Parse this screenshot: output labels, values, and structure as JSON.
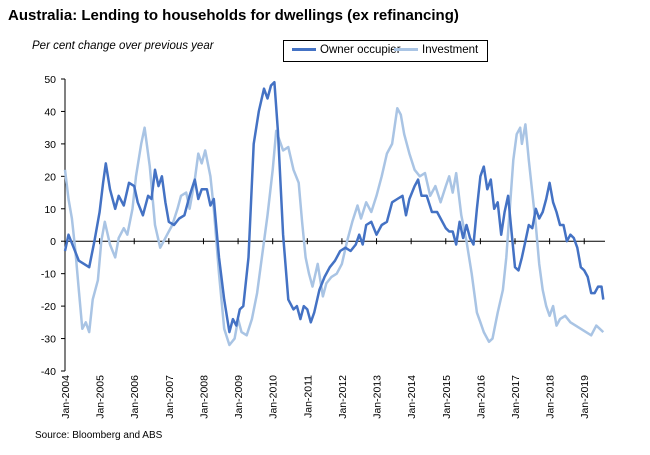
{
  "title": "Australia: Lending to households for dwellings (ex refinancing)",
  "source": "Source: Bloomberg and ABS",
  "chart_data": {
    "type": "line",
    "title": "Australia: Lending to households for dwellings (ex refinancing)",
    "subtitle": "Per cent change over previous year",
    "ylim": [
      -40,
      50
    ],
    "yticks": [
      -40,
      -30,
      -20,
      -10,
      0,
      10,
      20,
      30,
      40,
      50
    ],
    "xlim": [
      2004.0,
      2019.6
    ],
    "xticks": [
      "Jan-2004",
      "Jan-2005",
      "Jan-2006",
      "Jan-2007",
      "Jan-2008",
      "Jan-2009",
      "Jan-2010",
      "Jan-2011",
      "Jan-2012",
      "Jan-2013",
      "Jan-2014",
      "Jan-2015",
      "Jan-2016",
      "Jan-2017",
      "Jan-2018",
      "Jan-2019"
    ],
    "legend": "top-center",
    "grid": false,
    "series": [
      {
        "name": "Owner occupier",
        "color": "#4472c4",
        "points": [
          [
            2004.0,
            -3
          ],
          [
            2004.1,
            2
          ],
          [
            2004.25,
            -2
          ],
          [
            2004.4,
            -6
          ],
          [
            2004.55,
            -7
          ],
          [
            2004.7,
            -8
          ],
          [
            2004.85,
            0
          ],
          [
            2005.0,
            9
          ],
          [
            2005.1,
            18
          ],
          [
            2005.18,
            24
          ],
          [
            2005.3,
            16
          ],
          [
            2005.45,
            10
          ],
          [
            2005.55,
            14
          ],
          [
            2005.7,
            11
          ],
          [
            2005.85,
            18
          ],
          [
            2006.0,
            17
          ],
          [
            2006.1,
            12
          ],
          [
            2006.25,
            8
          ],
          [
            2006.4,
            14
          ],
          [
            2006.5,
            13
          ],
          [
            2006.6,
            22
          ],
          [
            2006.7,
            17
          ],
          [
            2006.8,
            20
          ],
          [
            2006.9,
            12
          ],
          [
            2007.0,
            6
          ],
          [
            2007.15,
            5
          ],
          [
            2007.3,
            7
          ],
          [
            2007.45,
            8
          ],
          [
            2007.6,
            14
          ],
          [
            2007.75,
            19
          ],
          [
            2007.85,
            13
          ],
          [
            2007.95,
            16
          ],
          [
            2008.1,
            16
          ],
          [
            2008.2,
            11
          ],
          [
            2008.3,
            13
          ],
          [
            2008.45,
            -5
          ],
          [
            2008.6,
            -18
          ],
          [
            2008.75,
            -28
          ],
          [
            2008.85,
            -24
          ],
          [
            2008.95,
            -26
          ],
          [
            2009.05,
            -21
          ],
          [
            2009.15,
            -20
          ],
          [
            2009.3,
            -5
          ],
          [
            2009.45,
            30
          ],
          [
            2009.6,
            40
          ],
          [
            2009.75,
            47
          ],
          [
            2009.85,
            44
          ],
          [
            2009.95,
            48
          ],
          [
            2010.05,
            49
          ],
          [
            2010.15,
            34
          ],
          [
            2010.3,
            2
          ],
          [
            2010.45,
            -18
          ],
          [
            2010.6,
            -21
          ],
          [
            2010.7,
            -20
          ],
          [
            2010.8,
            -24
          ],
          [
            2010.9,
            -20
          ],
          [
            2011.0,
            -21
          ],
          [
            2011.1,
            -25
          ],
          [
            2011.2,
            -22
          ],
          [
            2011.35,
            -15
          ],
          [
            2011.5,
            -11
          ],
          [
            2011.65,
            -8
          ],
          [
            2011.8,
            -6
          ],
          [
            2011.95,
            -3
          ],
          [
            2012.1,
            -2
          ],
          [
            2012.25,
            -3
          ],
          [
            2012.4,
            -1
          ],
          [
            2012.5,
            2
          ],
          [
            2012.6,
            -1
          ],
          [
            2012.7,
            5
          ],
          [
            2012.85,
            6
          ],
          [
            2013.0,
            2
          ],
          [
            2013.15,
            5
          ],
          [
            2013.3,
            6
          ],
          [
            2013.45,
            12
          ],
          [
            2013.6,
            13
          ],
          [
            2013.75,
            14
          ],
          [
            2013.85,
            8
          ],
          [
            2013.95,
            13
          ],
          [
            2014.1,
            17
          ],
          [
            2014.2,
            19
          ],
          [
            2014.3,
            14
          ],
          [
            2014.45,
            14
          ],
          [
            2014.6,
            9
          ],
          [
            2014.75,
            9
          ],
          [
            2014.85,
            7
          ],
          [
            2015.0,
            4
          ],
          [
            2015.1,
            3
          ],
          [
            2015.2,
            3
          ],
          [
            2015.3,
            -1
          ],
          [
            2015.4,
            6
          ],
          [
            2015.5,
            1
          ],
          [
            2015.6,
            5
          ],
          [
            2015.7,
            1
          ],
          [
            2015.8,
            -1
          ],
          [
            2015.9,
            10
          ],
          [
            2016.0,
            20
          ],
          [
            2016.1,
            23
          ],
          [
            2016.2,
            16
          ],
          [
            2016.3,
            19
          ],
          [
            2016.4,
            10
          ],
          [
            2016.5,
            12
          ],
          [
            2016.6,
            2
          ],
          [
            2016.7,
            9
          ],
          [
            2016.8,
            14
          ],
          [
            2016.9,
            3
          ],
          [
            2017.0,
            -8
          ],
          [
            2017.1,
            -9
          ],
          [
            2017.2,
            -5
          ],
          [
            2017.3,
            0
          ],
          [
            2017.4,
            5
          ],
          [
            2017.5,
            4
          ],
          [
            2017.6,
            10
          ],
          [
            2017.7,
            7
          ],
          [
            2017.8,
            9
          ],
          [
            2017.9,
            13
          ],
          [
            2018.0,
            18
          ],
          [
            2018.1,
            12
          ],
          [
            2018.2,
            9
          ],
          [
            2018.3,
            5
          ],
          [
            2018.4,
            5
          ],
          [
            2018.5,
            0
          ],
          [
            2018.6,
            2
          ],
          [
            2018.7,
            1
          ],
          [
            2018.8,
            -2
          ],
          [
            2018.9,
            -8
          ],
          [
            2019.0,
            -9
          ],
          [
            2019.1,
            -11
          ],
          [
            2019.2,
            -16
          ],
          [
            2019.3,
            -16
          ],
          [
            2019.4,
            -14
          ],
          [
            2019.5,
            -14
          ],
          [
            2019.55,
            -18
          ]
        ]
      },
      {
        "name": "Investment",
        "color": "#a9c4e4",
        "points": [
          [
            2004.0,
            22
          ],
          [
            2004.1,
            13
          ],
          [
            2004.2,
            7
          ],
          [
            2004.3,
            -3
          ],
          [
            2004.4,
            -15
          ],
          [
            2004.5,
            -27
          ],
          [
            2004.6,
            -25
          ],
          [
            2004.7,
            -28
          ],
          [
            2004.8,
            -18
          ],
          [
            2004.95,
            -12
          ],
          [
            2005.05,
            0
          ],
          [
            2005.15,
            6
          ],
          [
            2005.3,
            -1
          ],
          [
            2005.45,
            -5
          ],
          [
            2005.55,
            1
          ],
          [
            2005.7,
            4
          ],
          [
            2005.8,
            2
          ],
          [
            2005.95,
            10
          ],
          [
            2006.05,
            20
          ],
          [
            2006.2,
            30
          ],
          [
            2006.3,
            35
          ],
          [
            2006.45,
            23
          ],
          [
            2006.6,
            5
          ],
          [
            2006.75,
            -2
          ],
          [
            2006.85,
            0
          ],
          [
            2006.95,
            2
          ],
          [
            2007.1,
            5
          ],
          [
            2007.25,
            10
          ],
          [
            2007.35,
            14
          ],
          [
            2007.5,
            15
          ],
          [
            2007.6,
            10
          ],
          [
            2007.75,
            19
          ],
          [
            2007.85,
            27
          ],
          [
            2007.95,
            24
          ],
          [
            2008.05,
            28
          ],
          [
            2008.2,
            20
          ],
          [
            2008.3,
            10
          ],
          [
            2008.45,
            -10
          ],
          [
            2008.6,
            -27
          ],
          [
            2008.75,
            -32
          ],
          [
            2008.9,
            -30
          ],
          [
            2009.0,
            -24
          ],
          [
            2009.1,
            -28
          ],
          [
            2009.25,
            -29
          ],
          [
            2009.4,
            -24
          ],
          [
            2009.55,
            -16
          ],
          [
            2009.7,
            -4
          ],
          [
            2009.85,
            8
          ],
          [
            2010.0,
            22
          ],
          [
            2010.1,
            34
          ],
          [
            2010.2,
            31
          ],
          [
            2010.3,
            28
          ],
          [
            2010.45,
            29
          ],
          [
            2010.6,
            22
          ],
          [
            2010.75,
            18
          ],
          [
            2010.85,
            6
          ],
          [
            2010.95,
            -5
          ],
          [
            2011.05,
            -10
          ],
          [
            2011.15,
            -14
          ],
          [
            2011.3,
            -7
          ],
          [
            2011.45,
            -17
          ],
          [
            2011.55,
            -13
          ],
          [
            2011.7,
            -11
          ],
          [
            2011.85,
            -10
          ],
          [
            2012.0,
            -7
          ],
          [
            2012.15,
            0
          ],
          [
            2012.3,
            6
          ],
          [
            2012.45,
            11
          ],
          [
            2012.55,
            7
          ],
          [
            2012.7,
            12
          ],
          [
            2012.85,
            9
          ],
          [
            2013.0,
            14
          ],
          [
            2013.15,
            20
          ],
          [
            2013.3,
            27
          ],
          [
            2013.45,
            30
          ],
          [
            2013.6,
            41
          ],
          [
            2013.7,
            39
          ],
          [
            2013.8,
            33
          ],
          [
            2013.95,
            27
          ],
          [
            2014.1,
            22
          ],
          [
            2014.25,
            20
          ],
          [
            2014.4,
            21
          ],
          [
            2014.55,
            14
          ],
          [
            2014.7,
            17
          ],
          [
            2014.85,
            12
          ],
          [
            2015.0,
            17
          ],
          [
            2015.1,
            20
          ],
          [
            2015.2,
            15
          ],
          [
            2015.3,
            21
          ],
          [
            2015.45,
            8
          ],
          [
            2015.6,
            0
          ],
          [
            2015.75,
            -10
          ],
          [
            2015.9,
            -22
          ],
          [
            2016.0,
            -25
          ],
          [
            2016.1,
            -28
          ],
          [
            2016.25,
            -31
          ],
          [
            2016.35,
            -30
          ],
          [
            2016.5,
            -22
          ],
          [
            2016.65,
            -15
          ],
          [
            2016.75,
            -5
          ],
          [
            2016.85,
            10
          ],
          [
            2016.95,
            25
          ],
          [
            2017.05,
            33
          ],
          [
            2017.15,
            35
          ],
          [
            2017.2,
            30
          ],
          [
            2017.3,
            36
          ],
          [
            2017.4,
            25
          ],
          [
            2017.5,
            15
          ],
          [
            2017.6,
            5
          ],
          [
            2017.7,
            -7
          ],
          [
            2017.8,
            -15
          ],
          [
            2017.9,
            -20
          ],
          [
            2018.0,
            -23
          ],
          [
            2018.1,
            -20
          ],
          [
            2018.2,
            -26
          ],
          [
            2018.3,
            -24
          ],
          [
            2018.45,
            -23
          ],
          [
            2018.6,
            -25
          ],
          [
            2018.75,
            -26
          ],
          [
            2018.9,
            -27
          ],
          [
            2019.05,
            -28
          ],
          [
            2019.2,
            -29
          ],
          [
            2019.35,
            -26
          ],
          [
            2019.45,
            -27
          ],
          [
            2019.55,
            -28
          ]
        ]
      }
    ]
  }
}
